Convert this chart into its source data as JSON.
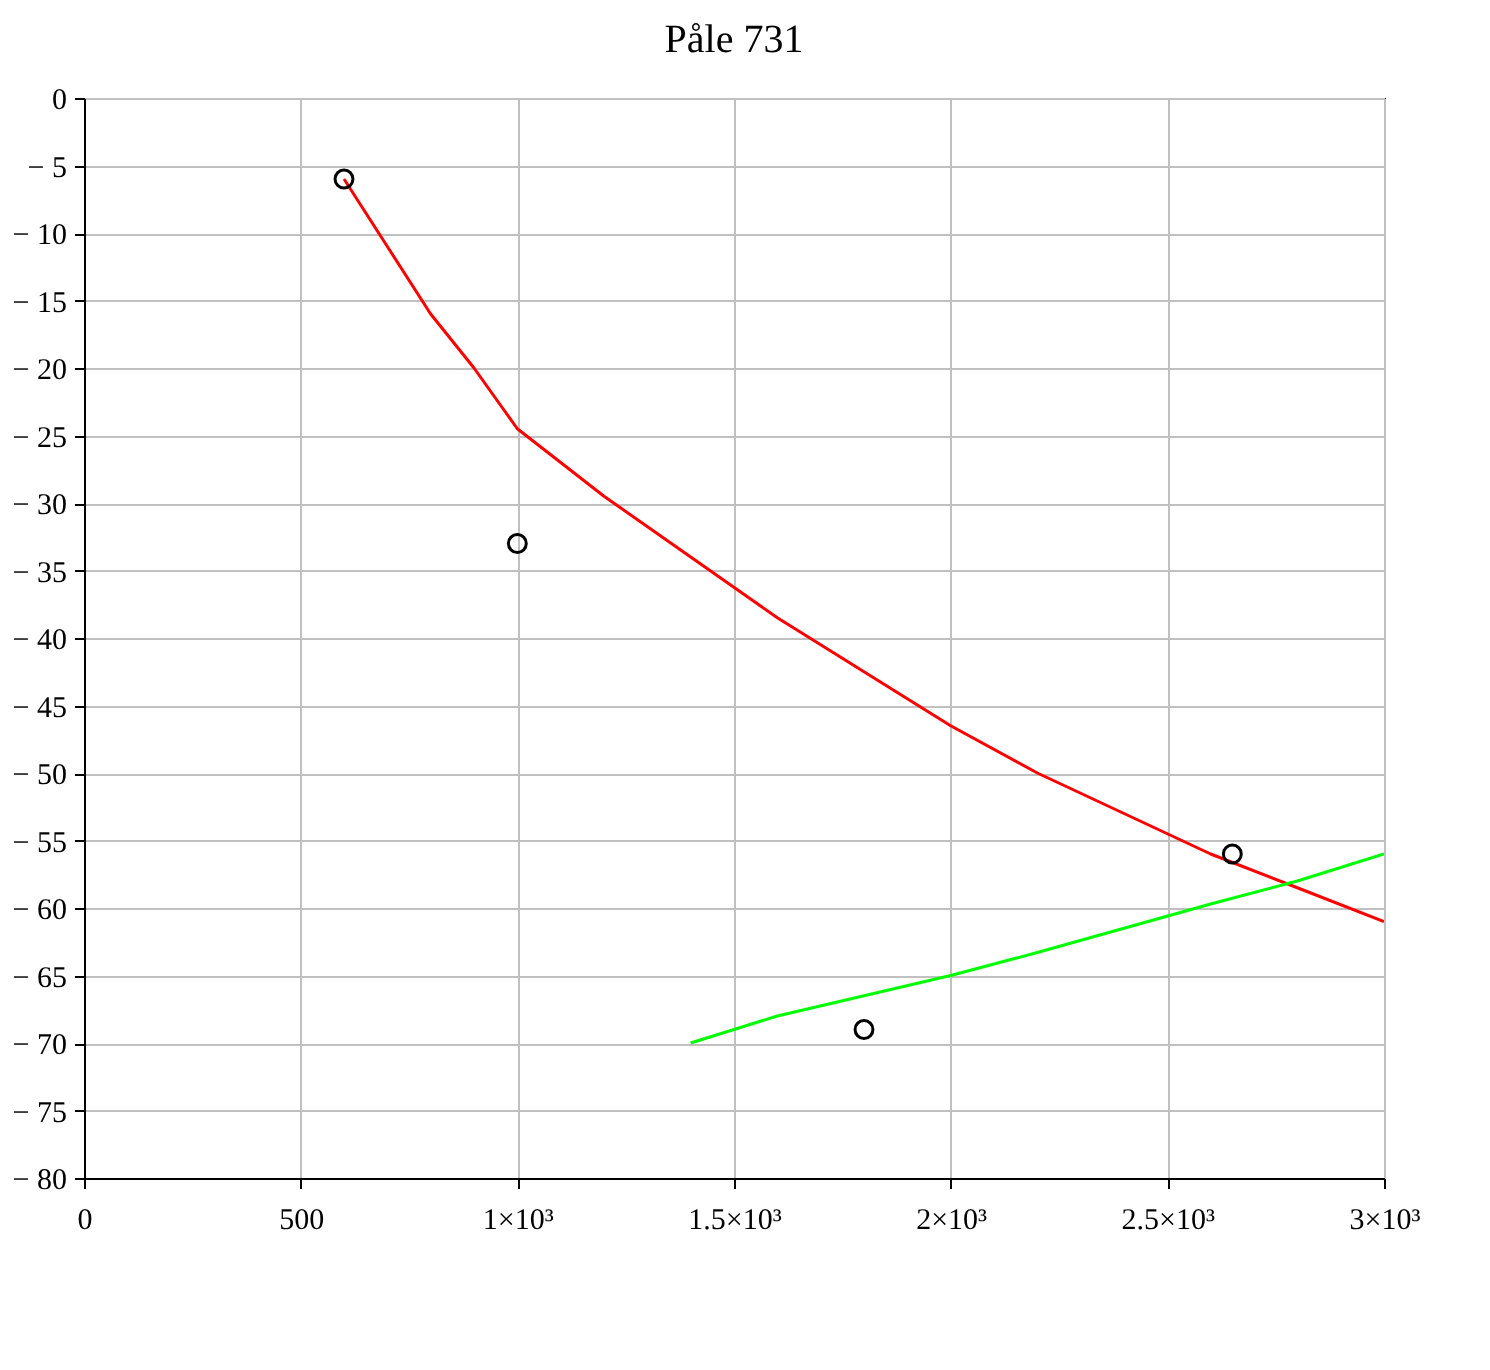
{
  "chart_data": {
    "type": "line",
    "title": "Påle 731",
    "xlim": [
      0,
      3000
    ],
    "ylim": [
      -80,
      0
    ],
    "xticks": [
      0,
      500,
      {
        "value": 1000,
        "label": "1×10³"
      },
      {
        "value": 1500,
        "label": "1.5×10³"
      },
      {
        "value": 2000,
        "label": "2×10³"
      },
      {
        "value": 2500,
        "label": "2.5×10³"
      },
      {
        "value": 3000,
        "label": "3×10³"
      }
    ],
    "yticks": [
      0,
      {
        "value": -5,
        "label": "− 5"
      },
      {
        "value": -10,
        "label": "− 10"
      },
      {
        "value": -15,
        "label": "− 15"
      },
      {
        "value": -20,
        "label": "− 20"
      },
      {
        "value": -25,
        "label": "− 25"
      },
      {
        "value": -30,
        "label": "− 30"
      },
      {
        "value": -35,
        "label": "− 35"
      },
      {
        "value": -40,
        "label": "− 40"
      },
      {
        "value": -45,
        "label": "− 45"
      },
      {
        "value": -50,
        "label": "− 50"
      },
      {
        "value": -55,
        "label": "− 55"
      },
      {
        "value": -60,
        "label": "− 60"
      },
      {
        "value": -65,
        "label": "− 65"
      },
      {
        "value": -70,
        "label": "− 70"
      },
      {
        "value": -75,
        "label": "− 75"
      },
      {
        "value": -80,
        "label": "− 80"
      }
    ],
    "grid": true,
    "line_style": "solid",
    "series": [
      {
        "type": "line",
        "color": "#ff0000",
        "x": [
          600,
          700,
          800,
          900,
          1000,
          1200,
          1400,
          1600,
          1800,
          2000,
          2200,
          2400,
          2600,
          2800,
          3000
        ],
        "values": [
          -6,
          -11,
          -16,
          -20,
          -24.5,
          -29.5,
          -34,
          -38.5,
          -42.5,
          -46.5,
          -50,
          -53,
          -56,
          -58.5,
          -61
        ]
      },
      {
        "type": "line",
        "color": "#00ff00",
        "x": [
          1400,
          1600,
          1800,
          2000,
          2200,
          2400,
          2600,
          2800,
          3000
        ],
        "values": [
          -70,
          -68,
          -66.5,
          -65,
          -63.3,
          -61.5,
          -59.7,
          -58,
          -56
        ]
      },
      {
        "type": "scatter",
        "marker": "circle",
        "color": "#000000",
        "x": [
          600,
          1000,
          1800,
          2650
        ],
        "values": [
          -6,
          -33,
          -69,
          -56
        ]
      }
    ]
  }
}
